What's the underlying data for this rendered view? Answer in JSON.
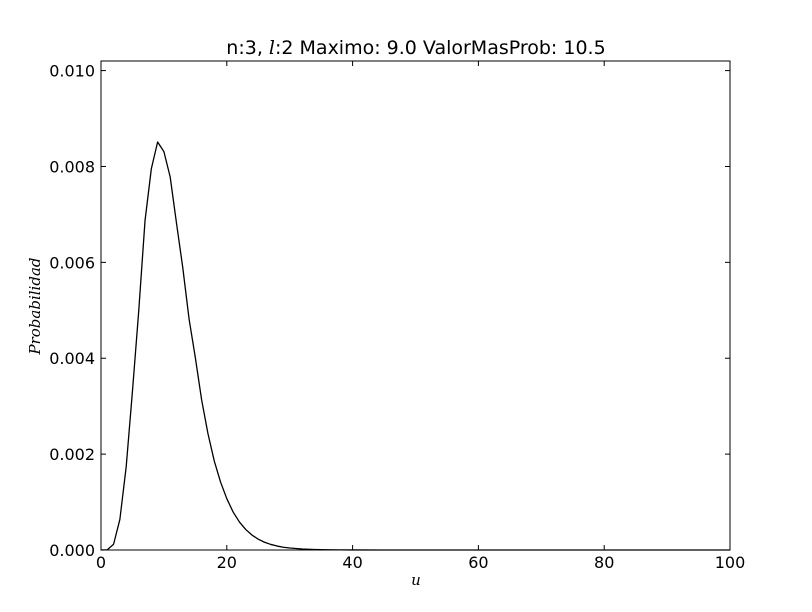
{
  "chart_data": {
    "type": "line",
    "title_parts": {
      "prefix": "n:3, ",
      "symbol": "l",
      "suffix": ":2 Maximo: 9.0 ValorMasProb: 10.5"
    },
    "xlabel": "u",
    "ylabel": "Probabilidad",
    "xlim": [
      0,
      100
    ],
    "ylim": [
      0,
      0.0102
    ],
    "x_ticks": [
      0,
      20,
      40,
      60,
      80,
      100
    ],
    "x_tick_labels": [
      "0",
      "20",
      "40",
      "60",
      "80",
      "100"
    ],
    "y_ticks": [
      0,
      0.002,
      0.004,
      0.006,
      0.008,
      0.01
    ],
    "y_tick_labels": [
      "0.000",
      "0.002",
      "0.004",
      "0.006",
      "0.008",
      "0.010"
    ],
    "grid": false,
    "line_color": "#000000",
    "series": [
      {
        "x": [
          0,
          1,
          2,
          3,
          4,
          5,
          6,
          7,
          8,
          9,
          10,
          11,
          12,
          13,
          14,
          15,
          16,
          17,
          18,
          19,
          20,
          21,
          22,
          23,
          24,
          25,
          26,
          27,
          28,
          29,
          30,
          32,
          34,
          36,
          38,
          40,
          45,
          50,
          60,
          70,
          80,
          90,
          100
        ],
        "y": [
          0,
          5.2e-06,
          0.00012,
          0.000637,
          0.00173,
          0.00331,
          0.00499,
          0.00687,
          0.00795,
          0.00851,
          0.00831,
          0.00778,
          0.00682,
          0.00589,
          0.00482,
          0.00401,
          0.00313,
          0.00243,
          0.00186,
          0.00142,
          0.00107,
          0.000794,
          0.000586,
          0.000429,
          0.000312,
          0.000226,
          0.000162,
          0.000116,
          8.24e-05,
          5.83e-05,
          4.12e-05,
          2.04e-05,
          1e-05,
          4.9e-06,
          2.4e-06,
          1.1e-06,
          2e-07,
          0,
          0,
          0,
          0,
          0,
          0
        ]
      }
    ]
  }
}
